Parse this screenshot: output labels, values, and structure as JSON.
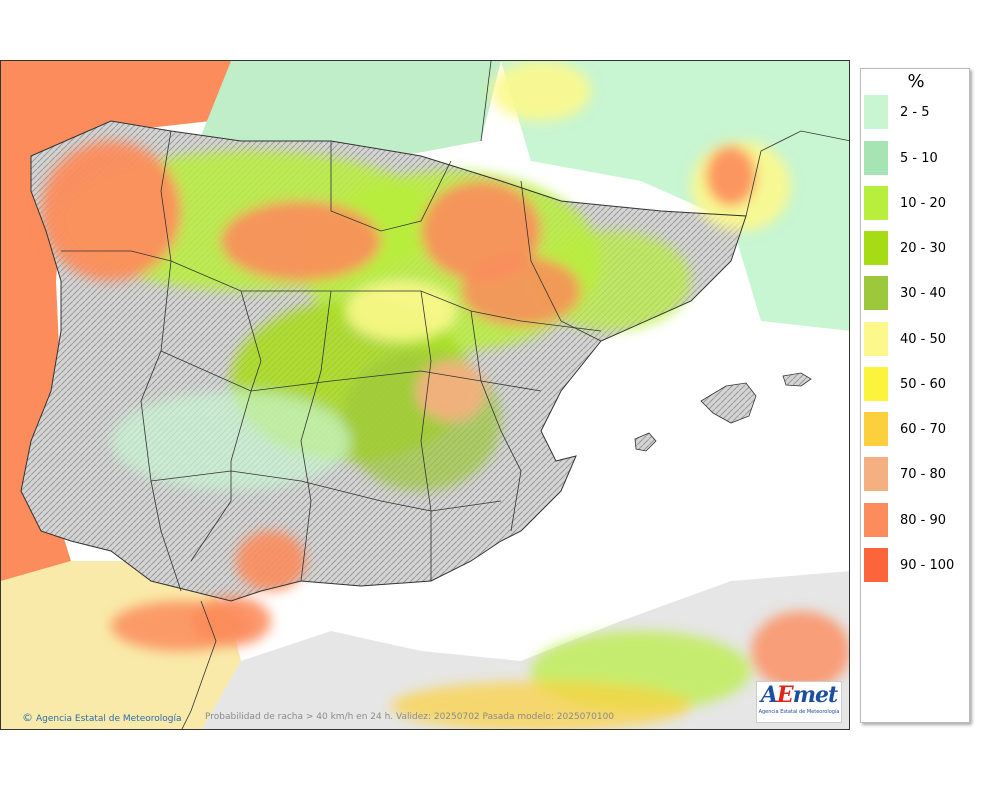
{
  "map": {
    "credit": "Agencia Estatal de Meteorología",
    "caption": "Probabilidad de racha > 40 km/h en 24 h. Validez: 20250702 Pasada modelo: 2025070100"
  },
  "logo": {
    "brand_a": "A",
    "brand_e": "E",
    "brand_rest": "met",
    "subtitle": "Agencia Estatal de Meteorología"
  },
  "legend": {
    "unit": "%",
    "items": [
      {
        "label": "2 - 5",
        "color": "#c8f5d2"
      },
      {
        "label": "5 - 10",
        "color": "#a6e4b4"
      },
      {
        "label": "10 - 20",
        "color": "#b8ee3c"
      },
      {
        "label": "20 - 30",
        "color": "#a6dc14"
      },
      {
        "label": "30 - 40",
        "color": "#9cc83c"
      },
      {
        "label": "40 - 50",
        "color": "#fcf88c"
      },
      {
        "label": "50 - 60",
        "color": "#fcf43c"
      },
      {
        "label": "60 - 70",
        "color": "#fcd03c"
      },
      {
        "label": "70 - 80",
        "color": "#f4b080"
      },
      {
        "label": "80 - 90",
        "color": "#fc8c5c"
      },
      {
        "label": "90 - 100",
        "color": "#fc643c"
      }
    ]
  }
}
